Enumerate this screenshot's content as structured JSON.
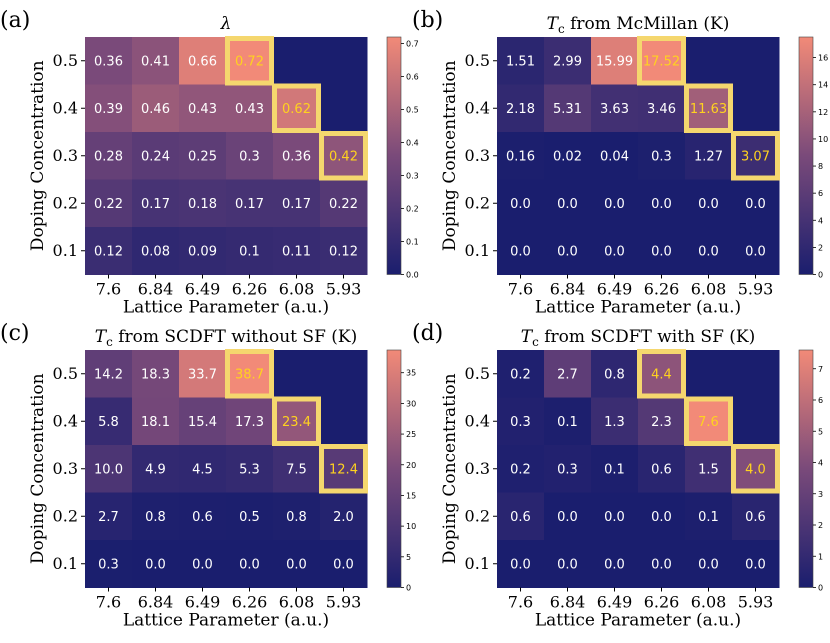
{
  "chart_data": [
    {
      "type": "heatmap",
      "panel_label": "(a)",
      "title": "λ",
      "xlabel": "Lattice Parameter (a.u.)",
      "ylabel": "Doping Concentration",
      "x_categories": [
        "7.6",
        "6.84",
        "6.49",
        "6.26",
        "6.08",
        "5.93"
      ],
      "y_categories": [
        "0.5",
        "0.4",
        "0.3",
        "0.2",
        "0.1"
      ],
      "values": [
        [
          0.36,
          0.41,
          0.66,
          0.72,
          null,
          null
        ],
        [
          0.39,
          0.46,
          0.43,
          0.43,
          0.62,
          null
        ],
        [
          0.28,
          0.24,
          0.25,
          0.3,
          0.36,
          0.42
        ],
        [
          0.22,
          0.17,
          0.18,
          0.17,
          0.17,
          0.22
        ],
        [
          0.12,
          0.08,
          0.09,
          0.1,
          0.11,
          0.12
        ]
      ],
      "labels": [
        [
          "0.36",
          "0.41",
          "0.66",
          "0.72",
          "",
          ""
        ],
        [
          "0.39",
          "0.46",
          "0.43",
          "0.43",
          "0.62",
          ""
        ],
        [
          "0.28",
          "0.24",
          "0.25",
          "0.3",
          "0.36",
          "0.42"
        ],
        [
          "0.22",
          "0.17",
          "0.18",
          "0.17",
          "0.17",
          "0.22"
        ],
        [
          "0.12",
          "0.08",
          "0.09",
          "0.1",
          "0.11",
          "0.12"
        ]
      ],
      "highlighted": [
        [
          0,
          3
        ],
        [
          1,
          4
        ],
        [
          2,
          5
        ]
      ],
      "vmin": 0,
      "vmax": 0.72,
      "colorbar_ticks": [
        "0.0",
        "0.1",
        "0.2",
        "0.3",
        "0.4",
        "0.5",
        "0.6",
        "0.7"
      ],
      "colorbar_tick_values": [
        0,
        0.1,
        0.2,
        0.3,
        0.4,
        0.5,
        0.6,
        0.7
      ]
    },
    {
      "type": "heatmap",
      "panel_label": "(b)",
      "title": "Tc from McMillan (K)",
      "title_parts": [
        "T",
        "c",
        " from McMillan (K)"
      ],
      "xlabel": "Lattice Parameter (a.u.)",
      "ylabel": "Doping Concentration",
      "x_categories": [
        "7.6",
        "6.84",
        "6.49",
        "6.26",
        "6.08",
        "5.93"
      ],
      "y_categories": [
        "0.5",
        "0.4",
        "0.3",
        "0.2",
        "0.1"
      ],
      "values": [
        [
          1.51,
          2.99,
          15.99,
          17.52,
          null,
          null
        ],
        [
          2.18,
          5.31,
          3.63,
          3.46,
          11.63,
          null
        ],
        [
          0.16,
          0.02,
          0.04,
          0.3,
          1.27,
          3.07
        ],
        [
          0.0,
          0.0,
          0.0,
          0.0,
          0.0,
          0.0
        ],
        [
          0.0,
          0.0,
          0.0,
          0.0,
          0.0,
          0.0
        ]
      ],
      "labels": [
        [
          "1.51",
          "2.99",
          "15.99",
          "17.52",
          "",
          ""
        ],
        [
          "2.18",
          "5.31",
          "3.63",
          "3.46",
          "11.63",
          ""
        ],
        [
          "0.16",
          "0.02",
          "0.04",
          "0.3",
          "1.27",
          "3.07"
        ],
        [
          "0.0",
          "0.0",
          "0.0",
          "0.0",
          "0.0",
          "0.0"
        ],
        [
          "0.0",
          "0.0",
          "0.0",
          "0.0",
          "0.0",
          "0.0"
        ]
      ],
      "highlighted": [
        [
          0,
          3
        ],
        [
          1,
          4
        ],
        [
          2,
          5
        ]
      ],
      "vmin": 0,
      "vmax": 17.52,
      "colorbar_ticks": [
        "0",
        "2",
        "4",
        "6",
        "8",
        "10",
        "12",
        "14",
        "16"
      ],
      "colorbar_tick_values": [
        0,
        2,
        4,
        6,
        8,
        10,
        12,
        14,
        16
      ]
    },
    {
      "type": "heatmap",
      "panel_label": "(c)",
      "title": "Tc from SCDFT without SF (K)",
      "title_parts": [
        "T",
        "c",
        " from SCDFT without SF (K)"
      ],
      "xlabel": "Lattice Parameter (a.u.)",
      "ylabel": "Doping Concentration",
      "x_categories": [
        "7.6",
        "6.84",
        "6.49",
        "6.26",
        "6.08",
        "5.93"
      ],
      "y_categories": [
        "0.5",
        "0.4",
        "0.3",
        "0.2",
        "0.1"
      ],
      "values": [
        [
          14.2,
          18.3,
          33.7,
          38.7,
          null,
          null
        ],
        [
          5.8,
          18.1,
          15.4,
          17.3,
          23.4,
          null
        ],
        [
          10.0,
          4.9,
          4.5,
          5.3,
          7.5,
          12.4
        ],
        [
          2.7,
          0.8,
          0.6,
          0.5,
          0.8,
          2.0
        ],
        [
          0.3,
          0.0,
          0.0,
          0.0,
          0.0,
          0.0
        ]
      ],
      "labels": [
        [
          "14.2",
          "18.3",
          "33.7",
          "38.7",
          "",
          ""
        ],
        [
          "5.8",
          "18.1",
          "15.4",
          "17.3",
          "23.4",
          ""
        ],
        [
          "10.0",
          "4.9",
          "4.5",
          "5.3",
          "7.5",
          "12.4"
        ],
        [
          "2.7",
          "0.8",
          "0.6",
          "0.5",
          "0.8",
          "2.0"
        ],
        [
          "0.3",
          "0.0",
          "0.0",
          "0.0",
          "0.0",
          "0.0"
        ]
      ],
      "highlighted": [
        [
          0,
          3
        ],
        [
          1,
          4
        ],
        [
          2,
          5
        ]
      ],
      "vmin": 0,
      "vmax": 38.7,
      "colorbar_ticks": [
        "0",
        "5",
        "10",
        "15",
        "20",
        "25",
        "30",
        "35"
      ],
      "colorbar_tick_values": [
        0,
        5,
        10,
        15,
        20,
        25,
        30,
        35
      ]
    },
    {
      "type": "heatmap",
      "panel_label": "(d)",
      "title": "Tc from SCDFT with SF (K)",
      "title_parts": [
        "T",
        "c",
        " from SCDFT with SF (K)"
      ],
      "xlabel": "Lattice Parameter (a.u.)",
      "ylabel": "Doping Concentration",
      "x_categories": [
        "7.6",
        "6.84",
        "6.49",
        "6.26",
        "6.08",
        "5.93"
      ],
      "y_categories": [
        "0.5",
        "0.4",
        "0.3",
        "0.2",
        "0.1"
      ],
      "values": [
        [
          0.2,
          2.7,
          0.8,
          4.4,
          null,
          null
        ],
        [
          0.3,
          0.1,
          1.3,
          2.3,
          7.6,
          null
        ],
        [
          0.2,
          0.3,
          0.1,
          0.6,
          1.5,
          4.0
        ],
        [
          0.6,
          0.0,
          0.0,
          0.0,
          0.1,
          0.6
        ],
        [
          0.0,
          0.0,
          0.0,
          0.0,
          0.0,
          0.0
        ]
      ],
      "labels": [
        [
          "0.2",
          "2.7",
          "0.8",
          "4.4",
          "",
          ""
        ],
        [
          "0.3",
          "0.1",
          "1.3",
          "2.3",
          "7.6",
          ""
        ],
        [
          "0.2",
          "0.3",
          "0.1",
          "0.6",
          "1.5",
          "4.0"
        ],
        [
          "0.6",
          "0.0",
          "0.0",
          "0.0",
          "0.1",
          "0.6"
        ],
        [
          "0.0",
          "0.0",
          "0.0",
          "0.0",
          "0.0",
          "0.0"
        ]
      ],
      "highlighted": [
        [
          0,
          3
        ],
        [
          1,
          4
        ],
        [
          2,
          5
        ]
      ],
      "vmin": 0,
      "vmax": 7.6,
      "colorbar_ticks": [
        "0",
        "1",
        "2",
        "3",
        "4",
        "5",
        "6",
        "7"
      ],
      "colorbar_tick_values": [
        0,
        1,
        2,
        3,
        4,
        5,
        6,
        7
      ]
    }
  ],
  "colors": {
    "low": "#1a1e6e",
    "mid": "#7a4a7a",
    "high": "#f28a78",
    "highlight_border": "#f5d76e",
    "highlight_text": "#ffd21f",
    "cell_text": "#ffffff"
  }
}
